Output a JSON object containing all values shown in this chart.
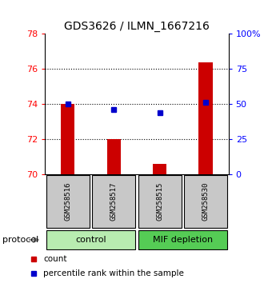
{
  "title": "GDS3626 / ILMN_1667216",
  "samples": [
    "GSM258516",
    "GSM258517",
    "GSM258515",
    "GSM258530"
  ],
  "red_values": [
    74.0,
    72.0,
    70.6,
    76.4
  ],
  "blue_values_pct": [
    50,
    46,
    44,
    51
  ],
  "ylim_left": [
    70,
    78
  ],
  "ylim_right": [
    0,
    100
  ],
  "yticks_left": [
    70,
    72,
    74,
    76,
    78
  ],
  "yticks_right": [
    0,
    25,
    50,
    75,
    100
  ],
  "ytick_labels_right": [
    "0",
    "25",
    "50",
    "75",
    "100%"
  ],
  "groups": [
    {
      "label": "control",
      "samples": [
        0,
        1
      ],
      "color": "#b8ecb0"
    },
    {
      "label": "MIF depletion",
      "samples": [
        2,
        3
      ],
      "color": "#55cc55"
    }
  ],
  "bar_color": "#cc0000",
  "dot_color": "#0000cc",
  "bar_width": 0.3,
  "sample_box_color": "#c8c8c8",
  "protocol_label": "protocol",
  "legend_items": [
    "count",
    "percentile rank within the sample"
  ],
  "grid_yticks": [
    72,
    74,
    76
  ]
}
